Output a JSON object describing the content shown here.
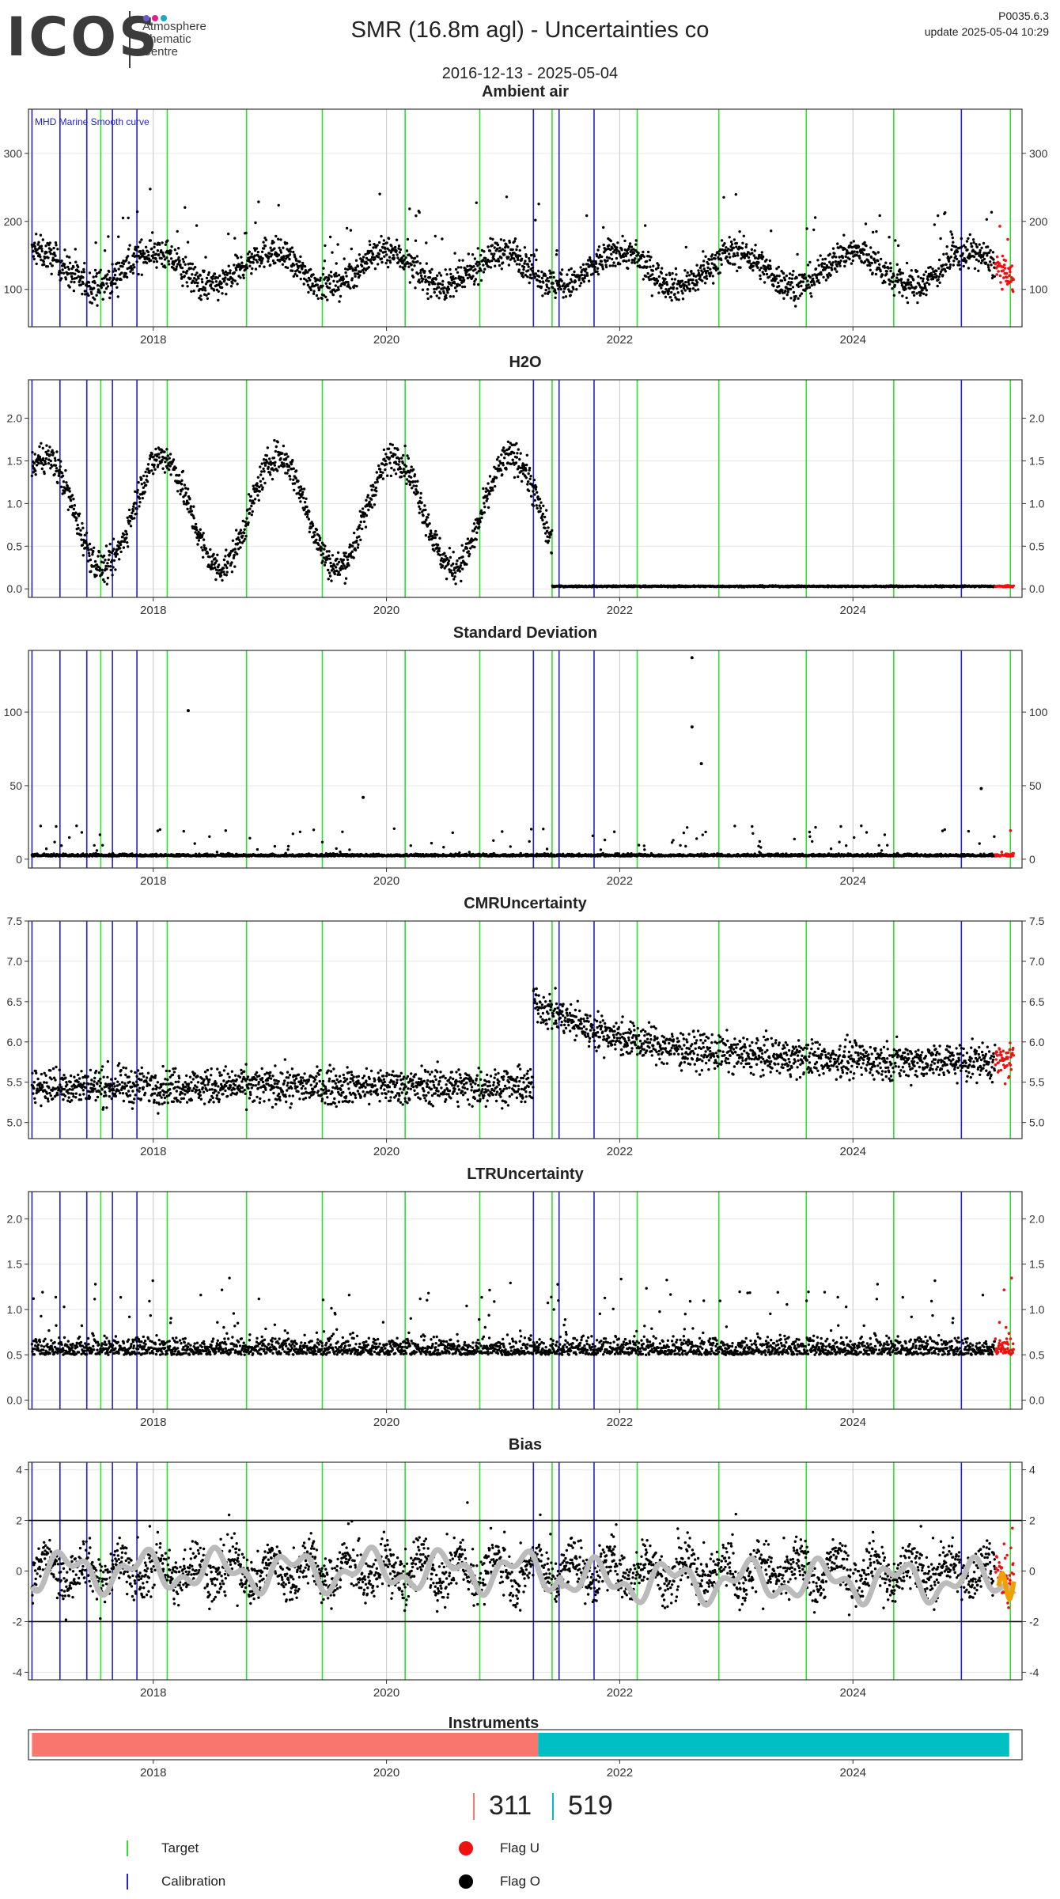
{
  "header": {
    "logo_text": "ICOS",
    "logo_sub": [
      "Atmosphere",
      "Thematic",
      "Centre"
    ],
    "logo_dot_colors": [
      "#6a5acd",
      "#e0218a",
      "#1ea7c5"
    ],
    "title": "SMR  (16.8m agl) - Uncertainties co",
    "date_range": "2016-12-13 - 2025-05-04",
    "version": "P0035.6.3",
    "update": "update  2025-05-04 10:29"
  },
  "colors": {
    "target": "#33dd33",
    "calibration": "#2222cc",
    "flag_u": "#ee1111",
    "flag_o": "#000000",
    "smooth": "#bbbbbb",
    "instrument_1": "#f8766d",
    "instrument_2": "#00bfc4",
    "smooth_recent": "#f0a000"
  },
  "events": {
    "calibration_dates": [
      2016.96,
      2017.2,
      2017.43,
      2017.65,
      2017.86,
      2021.26,
      2021.48,
      2021.78,
      2024.93
    ],
    "target_dates": [
      2017.55,
      2018.12,
      2018.8,
      2019.45,
      2020.16,
      2020.8,
      2021.42,
      2022.15,
      2022.85,
      2023.6,
      2024.35,
      2025.35
    ]
  },
  "chart_data": [
    {
      "type": "scatter",
      "title": "Ambient air",
      "annotation": "MHD Marine Smooth curve",
      "xlim": [
        2016.93,
        2025.45
      ],
      "xticks": [
        2018,
        2020,
        2022,
        2024
      ],
      "xtick_labels": [
        "2018",
        "2020",
        "2022",
        "2024"
      ],
      "ylim": [
        45,
        365
      ],
      "yticks": [
        100,
        200,
        300
      ],
      "ytick_labels": [
        "100",
        "200",
        "300"
      ],
      "series_profile": {
        "kind": "seasonal",
        "base": 130,
        "amp": 25,
        "noise": 22,
        "spikes": 0.04,
        "spike_amp": 90
      },
      "grid": true
    },
    {
      "type": "scatter",
      "title": "H2O",
      "xlim": [
        2016.93,
        2025.45
      ],
      "xticks": [
        2018,
        2020,
        2022,
        2024
      ],
      "xtick_labels": [
        "2018",
        "2020",
        "2022",
        "2024"
      ],
      "ylim": [
        -0.1,
        2.45
      ],
      "yticks": [
        0.0,
        0.5,
        1.0,
        1.5,
        2.0
      ],
      "ytick_labels": [
        "0.0",
        "0.5",
        "1.0",
        "1.5",
        "2.0"
      ],
      "series_profile": {
        "kind": "h2o",
        "base": 0.8,
        "amp": 0.7,
        "noise": 0.18,
        "dry_after": 2021.42,
        "dry_value": 0.03
      },
      "grid": true
    },
    {
      "type": "scatter",
      "title": "Standard Deviation",
      "xlim": [
        2016.93,
        2025.45
      ],
      "xticks": [
        2018,
        2020,
        2022,
        2024
      ],
      "xtick_labels": [
        "2018",
        "2020",
        "2022",
        "2024"
      ],
      "ylim": [
        -6,
        142
      ],
      "yticks": [
        0,
        50,
        100
      ],
      "ytick_labels": [
        "0",
        "50",
        "100"
      ],
      "series_profile": {
        "kind": "spiky",
        "base": 2,
        "noise": 1.5,
        "spikes": 0.03,
        "spike_amp": 20
      },
      "highlights": [
        {
          "x": 2018.3,
          "y": 101
        },
        {
          "x": 2022.62,
          "y": 137
        },
        {
          "x": 2022.62,
          "y": 90
        },
        {
          "x": 2022.7,
          "y": 65
        },
        {
          "x": 2019.8,
          "y": 42
        },
        {
          "x": 2025.1,
          "y": 48
        }
      ],
      "grid": true
    },
    {
      "type": "scatter",
      "title": "CMRUncertainty",
      "xlim": [
        2016.93,
        2025.45
      ],
      "xticks": [
        2018,
        2020,
        2022,
        2024
      ],
      "xtick_labels": [
        "2018",
        "2020",
        "2022",
        "2024"
      ],
      "ylim": [
        4.8,
        7.5
      ],
      "yticks": [
        5.0,
        5.5,
        6.0,
        6.5,
        7.0,
        7.5
      ],
      "ytick_labels": [
        "5.0",
        "5.5",
        "6.0",
        "6.5",
        "7.0",
        "7.5"
      ],
      "series_profile": {
        "kind": "step",
        "base": 5.45,
        "noise": 0.22,
        "step_at": 2021.26,
        "step_value": 6.1,
        "decay_to": 5.75
      },
      "grid": true
    },
    {
      "type": "scatter",
      "title": "LTRUncertainty",
      "xlim": [
        2016.93,
        2025.45
      ],
      "xticks": [
        2018,
        2020,
        2022,
        2024
      ],
      "xtick_labels": [
        "2018",
        "2020",
        "2022",
        "2024"
      ],
      "ylim": [
        -0.1,
        2.3
      ],
      "yticks": [
        0.0,
        0.5,
        1.0,
        1.5,
        2.0
      ],
      "ytick_labels": [
        "0.0",
        "0.5",
        "1.0",
        "1.5",
        "2.0"
      ],
      "series_profile": {
        "kind": "spiky",
        "base": 0.5,
        "noise": 0.18,
        "spikes": 0.05,
        "spike_amp": 0.7
      },
      "grid": true
    },
    {
      "type": "scatter",
      "title": "Bias",
      "xlim": [
        2016.93,
        2025.45
      ],
      "xticks": [
        2018,
        2020,
        2022,
        2024
      ],
      "xtick_labels": [
        "2018",
        "2020",
        "2022",
        "2024"
      ],
      "ylim": [
        -4.3,
        4.3
      ],
      "yticks": [
        -4,
        -2,
        0,
        2,
        4
      ],
      "ytick_labels": [
        "-4",
        "-2",
        "0",
        "2",
        "4"
      ],
      "hlines": [
        -2,
        2
      ],
      "series_profile": {
        "kind": "bias",
        "base": 0,
        "noise": 0.9,
        "spikes": 0.04,
        "spike_amp": 2.0
      },
      "smooth_profile": {
        "base": 0,
        "amp": 0.6
      },
      "grid": true
    }
  ],
  "instruments": {
    "title": "Instruments",
    "xlim": [
      2016.93,
      2025.45
    ],
    "xticks": [
      2018,
      2020,
      2022,
      2024
    ],
    "xtick_labels": [
      "2018",
      "2020",
      "2022",
      "2024"
    ],
    "segments": [
      {
        "id": "311",
        "start": 2016.96,
        "end": 2021.3
      },
      {
        "id": "519",
        "start": 2021.3,
        "end": 2025.34
      }
    ]
  },
  "counts": [
    {
      "label": "311"
    },
    {
      "label": "519"
    }
  ],
  "legend": {
    "target": "Target",
    "calibration": "Calibration",
    "flag_u": "Flag U",
    "flag_o": "Flag O"
  }
}
